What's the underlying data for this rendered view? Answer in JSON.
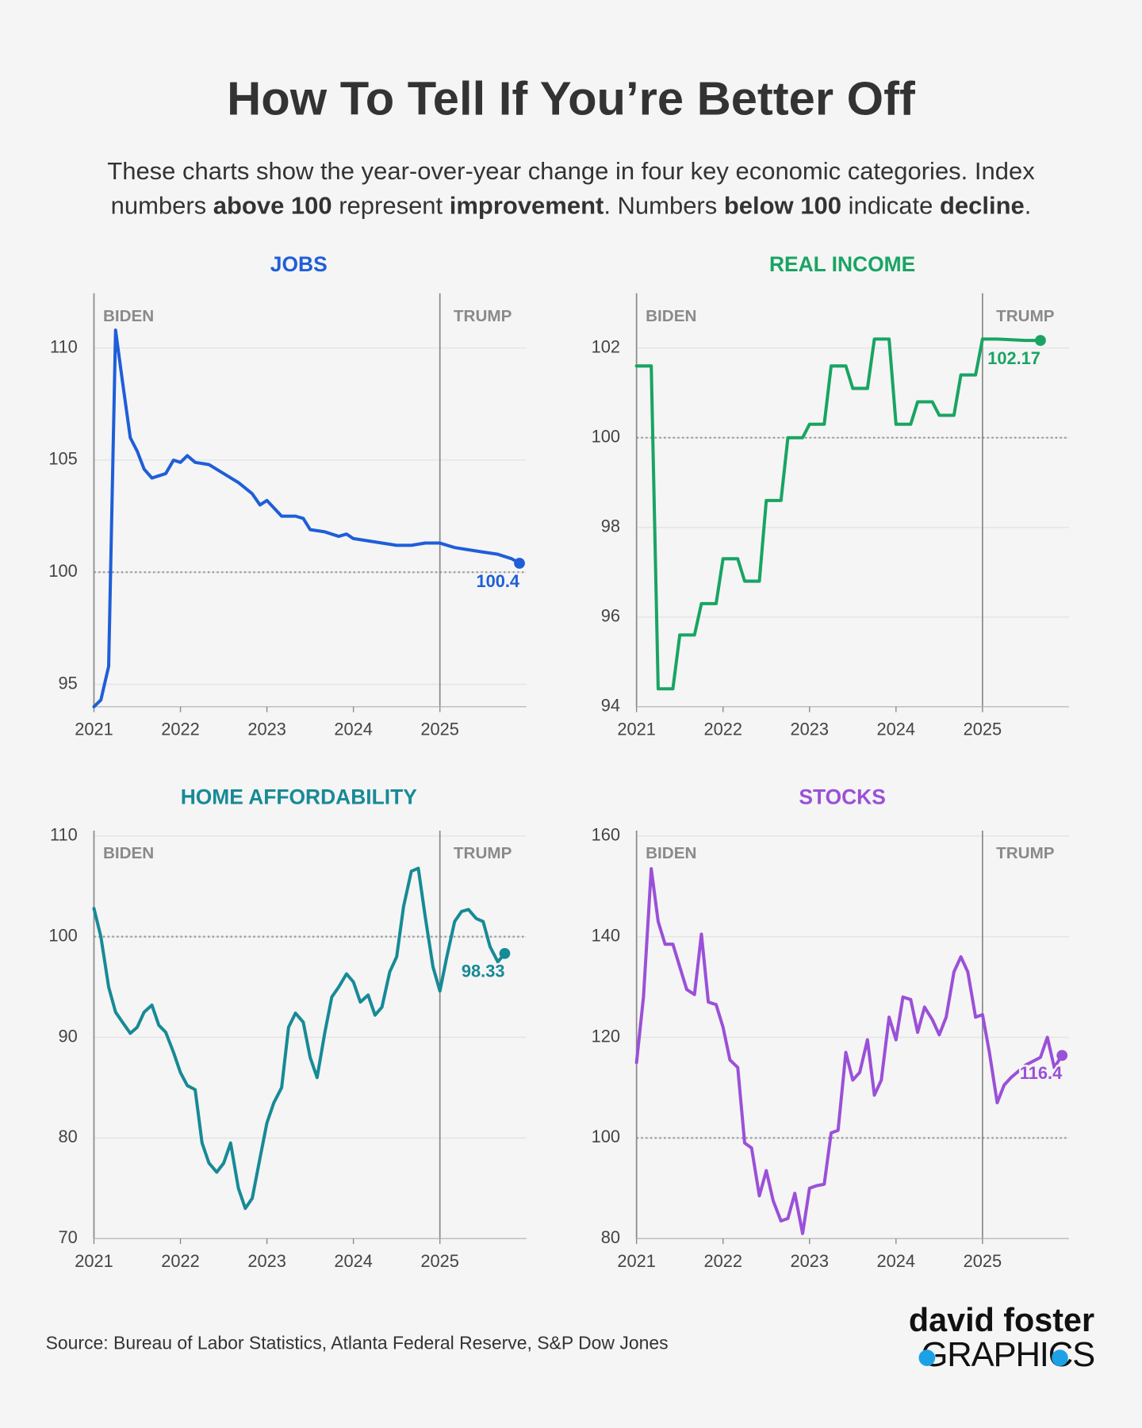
{
  "title": "How To Tell If You’re Better Off",
  "subtitle_lines": [
    [
      {
        "text": "These charts show the year-over-year change in four key economic categories. Index",
        "bold": false
      }
    ],
    [
      {
        "text": "numbers ",
        "bold": false
      },
      {
        "text": "above 100",
        "bold": true
      },
      {
        "text": " represent ",
        "bold": false
      },
      {
        "text": "improvement",
        "bold": true
      },
      {
        "text": ". Numbers ",
        "bold": false
      },
      {
        "text": "below 100",
        "bold": true
      },
      {
        "text": " indicate ",
        "bold": false
      },
      {
        "text": "decline",
        "bold": true
      },
      {
        "text": ".",
        "bold": false
      }
    ]
  ],
  "source": "Source: Bureau of Labor Statistics, Atlanta Federal Reserve, S&P Dow Jones",
  "logo": {
    "line1": "david foster",
    "line2": "GRAPHICS"
  },
  "chart_data": [
    {
      "type": "line",
      "title": "JOBS",
      "color": "#1f5ed8",
      "xlim": [
        2021,
        2026
      ],
      "xticks": [
        2021,
        2022,
        2023,
        2024,
        2025
      ],
      "ylim": [
        94,
        112.2
      ],
      "yticks": [
        95,
        100,
        105,
        110
      ],
      "grid": true,
      "reference_y": 100,
      "vlines": [
        {
          "x": 2021,
          "label": "BIDEN"
        },
        {
          "x": 2025,
          "label": "TRUMP"
        }
      ],
      "end_label": "100.4",
      "x": [
        2021.0,
        2021.08,
        2021.17,
        2021.25,
        2021.33,
        2021.42,
        2021.5,
        2021.58,
        2021.67,
        2021.83,
        2021.92,
        2022.0,
        2022.08,
        2022.17,
        2022.33,
        2022.5,
        2022.67,
        2022.83,
        2022.92,
        2023.0,
        2023.17,
        2023.33,
        2023.42,
        2023.5,
        2023.67,
        2023.83,
        2023.92,
        2024.0,
        2024.17,
        2024.33,
        2024.5,
        2024.67,
        2024.83,
        2025.0,
        2025.17,
        2025.33,
        2025.5,
        2025.67,
        2025.83,
        2025.92
      ],
      "values": [
        94.0,
        94.3,
        95.8,
        110.8,
        108.5,
        106.0,
        105.4,
        104.6,
        104.2,
        104.4,
        105.0,
        104.9,
        105.2,
        104.9,
        104.8,
        104.4,
        104.0,
        103.5,
        103.0,
        103.2,
        102.5,
        102.5,
        102.4,
        101.9,
        101.8,
        101.6,
        101.7,
        101.5,
        101.4,
        101.3,
        101.2,
        101.2,
        101.3,
        101.3,
        101.1,
        101.0,
        100.9,
        100.8,
        100.6,
        100.4
      ]
    },
    {
      "type": "line",
      "title": "REAL INCOME",
      "color": "#19a463",
      "xlim": [
        2021,
        2026
      ],
      "xticks": [
        2021,
        2022,
        2023,
        2024,
        2025
      ],
      "ylim": [
        94,
        103.1
      ],
      "yticks": [
        94,
        96,
        98,
        100,
        102
      ],
      "grid": true,
      "reference_y": 100,
      "vlines": [
        {
          "x": 2021,
          "label": "BIDEN"
        },
        {
          "x": 2025,
          "label": "TRUMP"
        }
      ],
      "end_label": "102.17",
      "x": [
        2021.0,
        2021.17,
        2021.25,
        2021.42,
        2021.5,
        2021.67,
        2021.75,
        2021.92,
        2022.0,
        2022.17,
        2022.25,
        2022.42,
        2022.5,
        2022.67,
        2022.75,
        2022.92,
        2023.0,
        2023.17,
        2023.25,
        2023.42,
        2023.5,
        2023.67,
        2023.75,
        2023.92,
        2024.0,
        2024.17,
        2024.25,
        2024.42,
        2024.5,
        2024.67,
        2024.75,
        2024.92,
        2025.0,
        2025.17,
        2025.5,
        2025.67
      ],
      "values": [
        101.6,
        101.6,
        94.4,
        94.4,
        95.6,
        95.6,
        96.3,
        96.3,
        97.3,
        97.3,
        96.8,
        96.8,
        98.6,
        98.6,
        100.0,
        100.0,
        100.3,
        100.3,
        101.6,
        101.6,
        101.1,
        101.1,
        102.2,
        102.2,
        100.3,
        100.3,
        100.8,
        100.8,
        100.5,
        100.5,
        101.4,
        101.4,
        102.2,
        102.2,
        102.17,
        102.17
      ]
    },
    {
      "type": "line",
      "title": "HOME AFFORDABILITY",
      "color": "#178a96",
      "xlim": [
        2021,
        2026
      ],
      "xticks": [
        2021,
        2022,
        2023,
        2024,
        2025
      ],
      "ylim": [
        70,
        110
      ],
      "yticks": [
        70,
        80,
        90,
        100,
        110
      ],
      "grid": true,
      "reference_y": 100,
      "vlines": [
        {
          "x": 2021,
          "label": "BIDEN"
        },
        {
          "x": 2025,
          "label": "TRUMP"
        }
      ],
      "end_label": "98.33",
      "x": [
        2021.0,
        2021.08,
        2021.17,
        2021.25,
        2021.33,
        2021.42,
        2021.5,
        2021.58,
        2021.67,
        2021.75,
        2021.83,
        2021.92,
        2022.0,
        2022.08,
        2022.17,
        2022.25,
        2022.33,
        2022.42,
        2022.5,
        2022.58,
        2022.67,
        2022.75,
        2022.83,
        2022.92,
        2023.0,
        2023.08,
        2023.17,
        2023.25,
        2023.33,
        2023.42,
        2023.5,
        2023.58,
        2023.67,
        2023.75,
        2023.83,
        2023.92,
        2024.0,
        2024.08,
        2024.17,
        2024.25,
        2024.33,
        2024.42,
        2024.5,
        2024.58,
        2024.67,
        2024.75,
        2024.83,
        2024.92,
        2025.0,
        2025.08,
        2025.17,
        2025.25,
        2025.33,
        2025.42,
        2025.5,
        2025.58,
        2025.67,
        2025.75
      ],
      "values": [
        102.8,
        100,
        95,
        92.5,
        91.5,
        90.4,
        91,
        92.5,
        93.2,
        91.2,
        90.5,
        88.5,
        86.5,
        85.2,
        84.8,
        79.5,
        77.5,
        76.6,
        77.5,
        79.5,
        75,
        73,
        74,
        78,
        81.5,
        83.5,
        85,
        91,
        92.4,
        91.5,
        88,
        86,
        90.5,
        94,
        95,
        96.3,
        95.5,
        93.5,
        94.2,
        92.2,
        93,
        96.5,
        98,
        103,
        106.5,
        106.8,
        102,
        97,
        94.6,
        98,
        101.5,
        102.5,
        102.7,
        101.8,
        101.5,
        99,
        97.5,
        98.33
      ]
    },
    {
      "type": "line",
      "title": "STOCKS",
      "color": "#9b50d8",
      "xlim": [
        2021,
        2026
      ],
      "xticks": [
        2021,
        2022,
        2023,
        2024,
        2025
      ],
      "ylim": [
        80,
        160
      ],
      "yticks": [
        80,
        100,
        120,
        140,
        160
      ],
      "grid": true,
      "reference_y": 100,
      "vlines": [
        {
          "x": 2021,
          "label": "BIDEN"
        },
        {
          "x": 2025,
          "label": "TRUMP"
        }
      ],
      "end_label": "116.4",
      "x": [
        2021.0,
        2021.08,
        2021.17,
        2021.25,
        2021.33,
        2021.42,
        2021.5,
        2021.58,
        2021.67,
        2021.75,
        2021.83,
        2021.92,
        2022.0,
        2022.08,
        2022.17,
        2022.25,
        2022.33,
        2022.42,
        2022.5,
        2022.58,
        2022.67,
        2022.75,
        2022.83,
        2022.92,
        2023.0,
        2023.08,
        2023.17,
        2023.25,
        2023.33,
        2023.42,
        2023.5,
        2023.58,
        2023.67,
        2023.75,
        2023.83,
        2023.92,
        2024.0,
        2024.08,
        2024.17,
        2024.25,
        2024.33,
        2024.42,
        2024.5,
        2024.58,
        2024.67,
        2024.75,
        2024.83,
        2024.92,
        2025.0,
        2025.08,
        2025.17,
        2025.25,
        2025.33,
        2025.5,
        2025.67,
        2025.75,
        2025.83,
        2025.92
      ],
      "values": [
        115,
        128,
        153.5,
        143,
        138.5,
        138.5,
        134,
        129.5,
        128.5,
        140.5,
        127,
        126.5,
        122,
        115.5,
        114,
        99,
        98,
        88.5,
        93.5,
        87.5,
        83.5,
        84,
        89,
        81,
        90,
        90.5,
        90.8,
        101,
        101.5,
        117,
        111.5,
        113,
        119.5,
        108.5,
        111.5,
        124,
        119.5,
        128,
        127.5,
        121,
        126,
        123.5,
        120.5,
        124,
        133,
        136,
        133,
        124,
        124.5,
        117,
        107,
        110.5,
        112,
        114.5,
        116,
        120,
        114,
        116.4
      ]
    }
  ]
}
